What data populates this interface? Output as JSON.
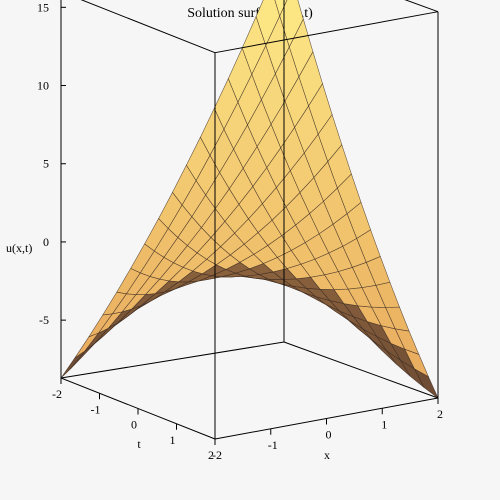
{
  "chart_data": {
    "type": "surface",
    "title": "Solution surface u(x,t)",
    "xlabel": "x",
    "ylabel": "t",
    "zlabel": "u(x,t)",
    "xlim": [
      -2,
      2
    ],
    "tlim": [
      -2,
      2
    ],
    "zlim": [
      -8.7,
      16
    ],
    "x_ticks": [
      "-2",
      "-1",
      "0",
      "1",
      "2"
    ],
    "t_ticks": [
      "-2",
      "-1",
      "0",
      "1",
      "2"
    ],
    "z_ticks": [
      "-5",
      "0",
      "5",
      "10",
      "15"
    ],
    "corner_values": [
      {
        "x": 2,
        "t": -2,
        "u": 16
      },
      {
        "x": -2,
        "t": 2,
        "u": 11
      },
      {
        "x": -2,
        "t": -2,
        "u": -8.7
      },
      {
        "x": 2,
        "t": 2,
        "u": -8.7
      }
    ],
    "center_value": {
      "x": 0,
      "t": 0,
      "u": -1
    },
    "colors": {
      "surface_light": "#ffef8a",
      "surface_mid": "#e8a85c",
      "surface_dark": "#6b4a33",
      "mesh": "#3a2a20",
      "background": "#f6f6f6"
    }
  }
}
